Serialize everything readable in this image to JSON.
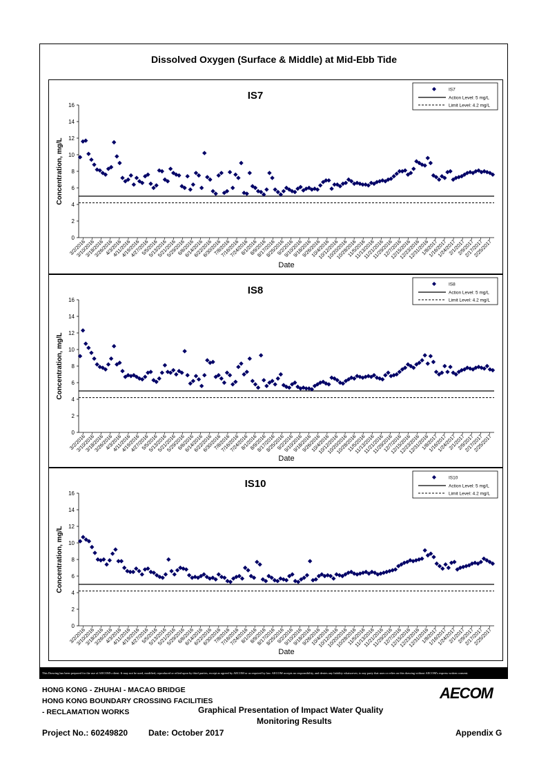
{
  "page": {
    "title": "Dissolved Oxygen (Surface & Middle) at Mid-Ebb Tide",
    "disclaimer": "This Drawing has been prepared for the use of AECOM's client. It may not be used, modified, reproduced or relied upon by third parties, except as agreed by AECOM or as required by law. AECOM accepts no responsibility, and denies any liability whatsoever, to any party that uses or relies on this drawing without AECOM's express written consent.",
    "footer": {
      "line1": "HONG KONG - ZHUHAI - MACAO BRIDGE",
      "line2": "HONG KONG BOUNDARY CROSSING FACILITIES",
      "line3": "- RECLAMATION WORKS",
      "center1": "Graphical Presentation of Impact Water Quality",
      "center2": "Monitoring Results",
      "project": "Project No.: 60249820",
      "date": "Date: October 2017",
      "appendix": "Appendix G",
      "logo": "AECOM"
    }
  },
  "chart_data": [
    {
      "type": "scatter",
      "title": "IS7",
      "xlabel": "Date",
      "ylabel": "Concentration, mg/L",
      "ylim": [
        0,
        16
      ],
      "yticks": [
        0,
        2,
        4,
        6,
        8,
        10,
        12,
        14,
        16
      ],
      "xticks": [
        "3/2/2016",
        "3/10/2016",
        "3/18/2016",
        "3/26/2016",
        "4/3/2016",
        "4/11/2016",
        "4/19/2016",
        "4/27/2016",
        "5/5/2016",
        "5/13/2016",
        "5/21/2016",
        "5/29/2016",
        "6/6/2016",
        "6/14/2016",
        "6/22/2016",
        "6/30/2016",
        "7/8/2016",
        "7/16/2016",
        "7/24/2016",
        "8/1/2016",
        "8/9/2016",
        "8/17/2016",
        "8/25/2016",
        "9/2/2016",
        "9/10/2016",
        "9/18/2016",
        "9/26/2016",
        "10/4/2016",
        "10/12/2016",
        "10/20/2016",
        "10/28/2016",
        "11/5/2016",
        "11/13/2016",
        "11/21/2016",
        "11/29/2016",
        "12/7/2016",
        "12/15/2016",
        "12/23/2016",
        "12/31/2016",
        "1/8/2017",
        "1/16/2017",
        "1/24/2017",
        "2/1/2017",
        "2/9/2017",
        "2/17/2017",
        "2/25/2017"
      ],
      "legend": {
        "series": "IS7",
        "action": "Action Level: 5 mg/L",
        "limit": "Limit Level: 4.2 mg/L",
        "position": "top-right"
      },
      "action_level": 5,
      "limit_level": 4.2,
      "values": [
        9.7,
        11.6,
        11.7,
        10.1,
        9.4,
        8.8,
        8.2,
        8.1,
        7.8,
        7.6,
        8.3,
        8.5,
        11.5,
        9.8,
        9.0,
        7.2,
        6.8,
        7.0,
        7.5,
        6.4,
        7.2,
        6.8,
        6.6,
        7.4,
        7.6,
        6.5,
        6.0,
        6.3,
        8.1,
        8.0,
        7.0,
        6.8,
        8.3,
        7.8,
        7.6,
        7.5,
        6.2,
        6.0,
        7.4,
        5.8,
        6.4,
        7.8,
        7.5,
        6.0,
        10.2,
        7.3,
        7.0,
        5.6,
        5.3,
        7.5,
        7.8,
        5.4,
        5.6,
        7.9,
        6.0,
        7.6,
        7.2,
        9.0,
        5.4,
        5.3,
        7.8,
        6.2,
        6.0,
        5.6,
        5.5,
        5.2,
        5.8,
        7.8,
        7.2,
        5.8,
        5.5,
        5.2,
        5.6,
        6.0,
        5.8,
        5.6,
        5.5,
        5.9,
        6.1,
        5.7,
        5.9,
        6.0,
        5.8,
        5.9,
        5.8,
        6.3,
        6.7,
        6.9,
        6.9,
        5.9,
        6.4,
        6.4,
        6.2,
        6.5,
        6.6,
        7.0,
        6.8,
        6.5,
        6.6,
        6.5,
        6.4,
        6.4,
        6.3,
        6.6,
        6.5,
        6.7,
        6.8,
        6.9,
        6.8,
        7.0,
        7.1,
        7.4,
        7.7,
        8.0,
        8.0,
        8.1,
        7.6,
        7.8,
        8.3,
        9.2,
        9.0,
        8.8,
        8.7,
        9.6,
        9.0,
        7.5,
        7.3,
        7.0,
        7.4,
        7.2,
        7.9,
        8.0,
        7.0,
        7.2,
        7.3,
        7.4,
        7.6,
        7.8,
        7.9,
        7.8,
        8.0,
        8.1,
        7.9,
        8.0,
        7.9,
        7.8,
        7.6
      ]
    },
    {
      "type": "scatter",
      "title": "IS8",
      "xlabel": "Date",
      "ylabel": "Concentration, mg/L",
      "ylim": [
        0,
        16
      ],
      "yticks": [
        0,
        2,
        4,
        6,
        8,
        10,
        12,
        14,
        16
      ],
      "xticks": [
        "3/2/2016",
        "3/10/2016",
        "3/18/2016",
        "3/26/2016",
        "4/3/2016",
        "4/11/2016",
        "4/19/2016",
        "4/27/2016",
        "5/5/2016",
        "5/13/2016",
        "5/21/2016",
        "5/29/2016",
        "6/6/2016",
        "6/14/2016",
        "6/22/2016",
        "6/30/2016",
        "7/8/2016",
        "7/16/2016",
        "7/24/2016",
        "8/1/2016",
        "8/9/2016",
        "8/17/2016",
        "8/25/2016",
        "9/2/2016",
        "9/10/2016",
        "9/18/2016",
        "9/26/2016",
        "10/4/2016",
        "10/12/2016",
        "10/20/2016",
        "10/28/2016",
        "11/5/2016",
        "11/13/2016",
        "11/21/2016",
        "11/29/2016",
        "12/7/2016",
        "12/15/2016",
        "12/23/2016",
        "12/31/2016",
        "1/8/2017",
        "1/16/2017",
        "1/24/2017",
        "2/1/2017",
        "2/9/2017",
        "2/17/2017",
        "2/25/2017"
      ],
      "legend": {
        "series": "IS8",
        "action": "Action Level: 5 mg/L",
        "limit": "Limit Level: 4.2 mg/L",
        "position": "top-right"
      },
      "action_level": 5,
      "limit_level": 4.2,
      "values": [
        9.2,
        12.3,
        10.7,
        10.2,
        9.6,
        8.9,
        8.2,
        7.9,
        7.8,
        7.6,
        8.2,
        8.9,
        10.4,
        8.2,
        8.4,
        7.4,
        6.7,
        6.9,
        6.8,
        6.9,
        6.7,
        6.5,
        6.4,
        6.7,
        7.2,
        7.3,
        6.3,
        6.1,
        6.5,
        7.2,
        8.1,
        7.3,
        7.2,
        7.5,
        7.0,
        7.4,
        7.2,
        9.8,
        6.9,
        5.9,
        6.2,
        6.8,
        6.4,
        5.6,
        6.9,
        8.7,
        8.4,
        8.5,
        6.7,
        6.9,
        6.5,
        6.0,
        7.2,
        6.9,
        5.8,
        6.1,
        7.9,
        8.3,
        7.0,
        7.3,
        8.9,
        6.2,
        5.8,
        5.4,
        9.3,
        6.3,
        5.6,
        6.0,
        6.2,
        5.8,
        6.5,
        7.0,
        5.7,
        5.5,
        5.4,
        5.8,
        6.0,
        5.5,
        5.3,
        5.4,
        5.3,
        5.3,
        5.2,
        5.6,
        5.8,
        6.0,
        6.1,
        5.9,
        5.8,
        6.6,
        6.5,
        6.3,
        6.0,
        5.9,
        6.2,
        6.4,
        6.6,
        6.5,
        6.8,
        6.7,
        6.6,
        6.7,
        6.8,
        6.7,
        6.9,
        6.6,
        6.5,
        6.4,
        6.9,
        7.2,
        6.8,
        6.9,
        7.0,
        7.3,
        7.6,
        7.8,
        8.2,
        8.0,
        7.8,
        8.2,
        8.4,
        8.7,
        9.3,
        8.3,
        9.2,
        8.5,
        7.3,
        7.0,
        7.2,
        8.0,
        7.3,
        7.9,
        7.2,
        7.0,
        7.3,
        7.5,
        7.6,
        7.8,
        7.7,
        7.6,
        7.8,
        7.9,
        7.8,
        7.7,
        8.0,
        7.6,
        7.5
      ]
    },
    {
      "type": "scatter",
      "title": "IS10",
      "xlabel": "Date",
      "ylabel": "Concentration, mg/L",
      "ylim": [
        0,
        16
      ],
      "yticks": [
        0,
        2,
        4,
        6,
        8,
        10,
        12,
        14,
        16
      ],
      "xticks": [
        "3/2/2016",
        "3/10/2016",
        "3/18/2016",
        "3/26/2016",
        "4/3/2016",
        "4/11/2016",
        "4/19/2016",
        "4/27/2016",
        "5/5/2016",
        "5/13/2016",
        "5/21/2016",
        "5/29/2016",
        "6/6/2016",
        "6/14/2016",
        "6/22/2016",
        "6/30/2016",
        "7/8/2016",
        "7/16/2016",
        "7/24/2016",
        "8/1/2016",
        "8/9/2016",
        "8/17/2016",
        "8/25/2016",
        "9/2/2016",
        "9/10/2016",
        "9/18/2016",
        "9/26/2016",
        "10/4/2016",
        "10/12/2016",
        "10/20/2016",
        "10/28/2016",
        "11/5/2016",
        "11/13/2016",
        "11/21/2016",
        "11/29/2016",
        "12/7/2016",
        "12/15/2016",
        "12/23/2016",
        "12/31/2016",
        "1/8/2017",
        "1/16/2017",
        "1/24/2017",
        "2/1/2017",
        "2/9/2017",
        "2/17/2017",
        "2/25/2017"
      ],
      "legend": {
        "series": "IS10",
        "action": "Action Level: 5 mg/L",
        "limit": "Limit Level: 4.2 mg/L",
        "position": "top-right"
      },
      "action_level": 5,
      "limit_level": 4.2,
      "values": [
        10.2,
        10.7,
        10.4,
        10.2,
        9.5,
        8.8,
        8.0,
        7.9,
        8.0,
        7.4,
        7.9,
        8.7,
        9.2,
        7.8,
        7.8,
        7.0,
        6.6,
        6.5,
        6.5,
        6.9,
        6.6,
        6.2,
        6.8,
        6.9,
        6.5,
        6.4,
        6.1,
        5.9,
        5.8,
        6.2,
        8.0,
        6.6,
        6.2,
        6.7,
        7.0,
        6.9,
        6.8,
        6.1,
        5.8,
        5.9,
        5.8,
        6.0,
        6.2,
        5.9,
        5.7,
        5.8,
        5.6,
        6.2,
        5.9,
        5.8,
        5.4,
        5.3,
        5.7,
        5.9,
        6.0,
        5.7,
        7.0,
        6.7,
        6.0,
        5.8,
        7.7,
        7.4,
        5.6,
        5.4,
        6.0,
        5.8,
        5.5,
        5.4,
        5.7,
        5.6,
        5.5,
        6.0,
        6.2,
        5.4,
        5.3,
        5.6,
        5.8,
        6.1,
        7.8,
        5.5,
        5.6,
        6.0,
        6.2,
        6.0,
        6.1,
        6.0,
        5.7,
        6.2,
        6.1,
        6.0,
        6.2,
        6.4,
        6.5,
        6.3,
        6.2,
        6.3,
        6.4,
        6.5,
        6.3,
        6.5,
        6.4,
        6.2,
        6.3,
        6.4,
        6.5,
        6.6,
        6.7,
        6.8,
        7.2,
        7.4,
        7.6,
        7.7,
        7.9,
        7.8,
        7.9,
        8.0,
        8.1,
        9.1,
        8.5,
        8.7,
        8.3,
        7.5,
        7.2,
        6.9,
        7.4,
        7.0,
        7.6,
        7.7,
        6.8,
        7.0,
        7.1,
        7.2,
        7.3,
        7.5,
        7.6,
        7.5,
        7.7,
        8.1,
        7.9,
        7.7,
        7.5
      ]
    }
  ]
}
